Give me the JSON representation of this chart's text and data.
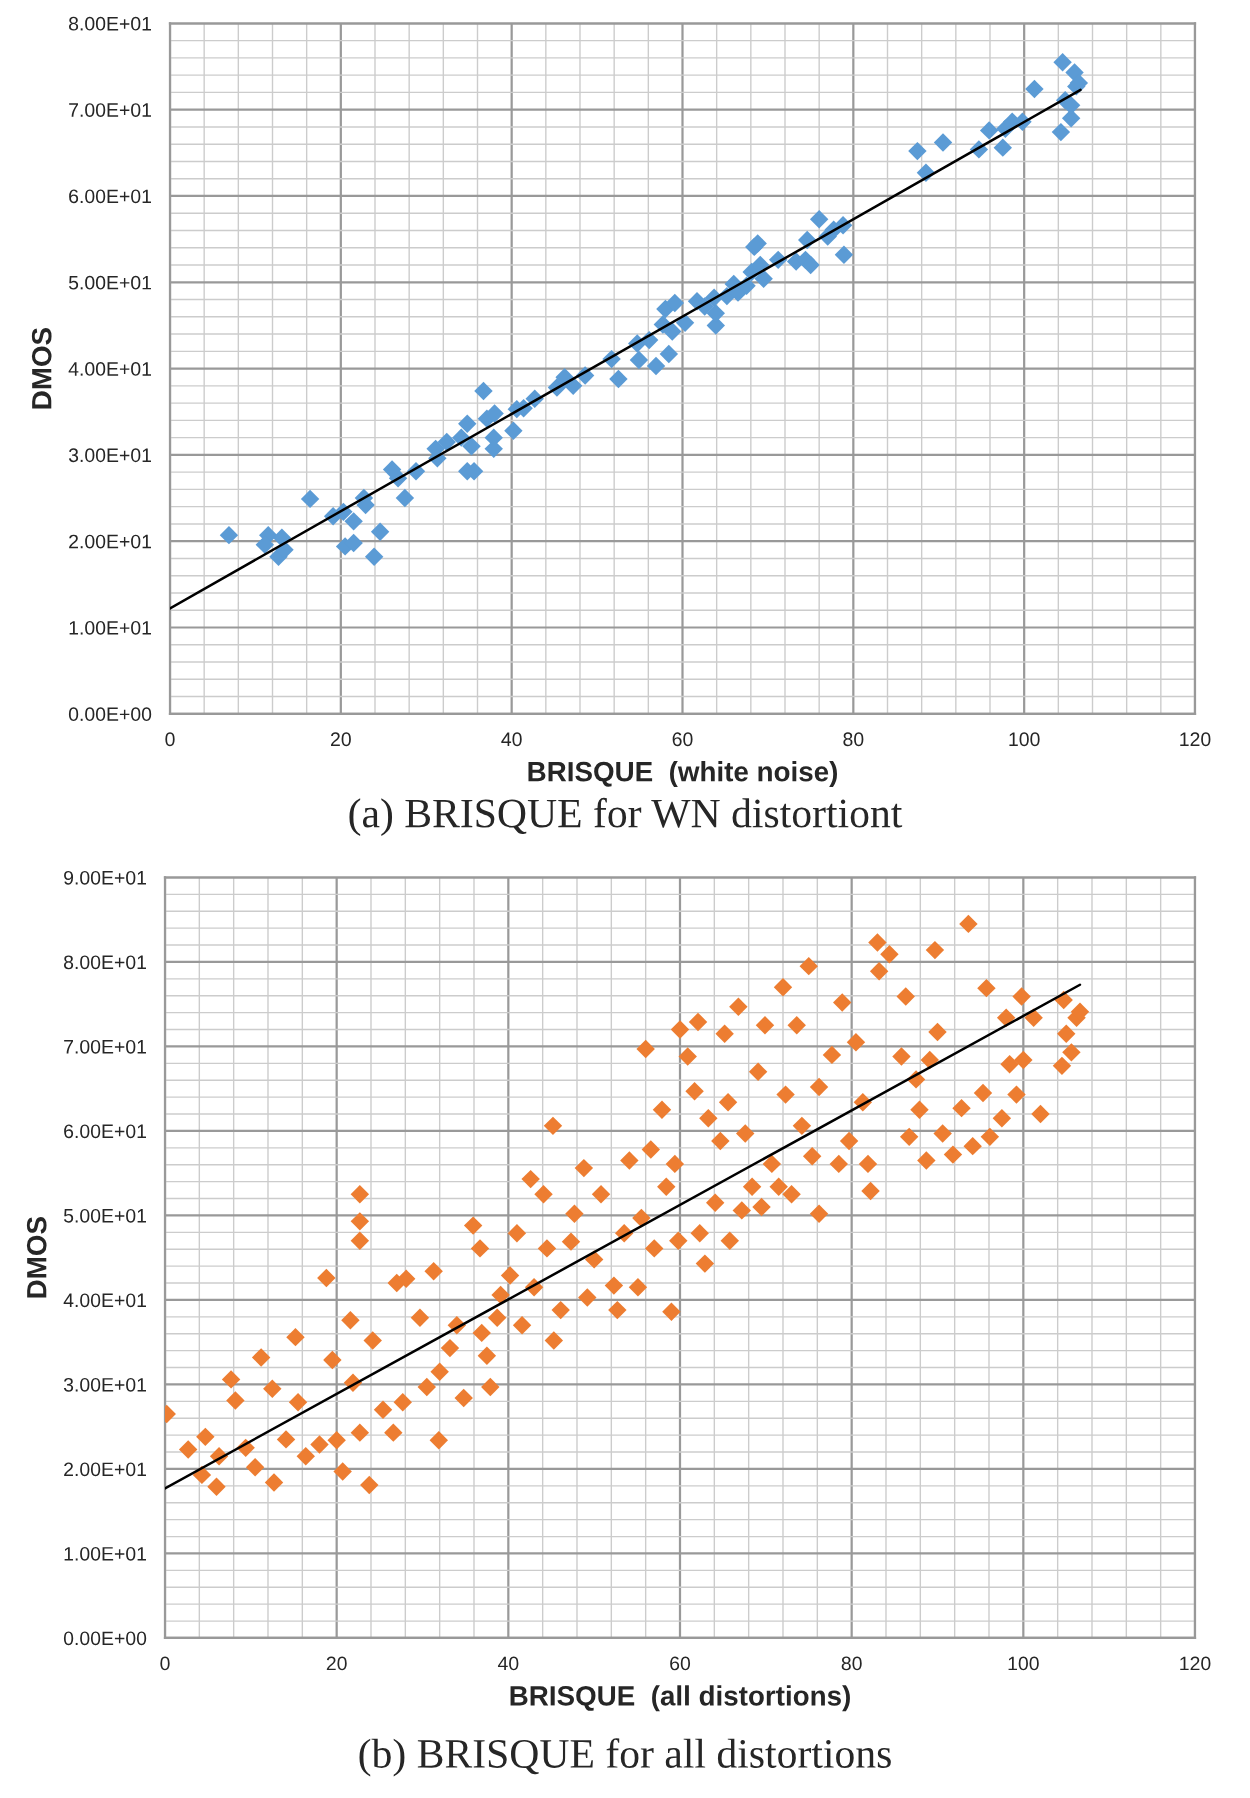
{
  "chart_data": [
    {
      "type": "scatter",
      "title": "(a) BRISQUE for WN distortiont",
      "xlabel": "BRISQUE  (white noise)",
      "ylabel": "DMOS",
      "xlim": [
        0,
        120
      ],
      "xticks": [
        0,
        20,
        40,
        60,
        80,
        100,
        120
      ],
      "ylim": [
        0,
        80
      ],
      "yticks": [
        {
          "value": 0,
          "label": "0.00E+00"
        },
        {
          "value": 10,
          "label": "1.00E+01"
        },
        {
          "value": 20,
          "label": "2.00E+01"
        },
        {
          "value": 30,
          "label": "3.00E+01"
        },
        {
          "value": 40,
          "label": "4.00E+01"
        },
        {
          "value": 50,
          "label": "5.00E+01"
        },
        {
          "value": 60,
          "label": "6.00E+01"
        },
        {
          "value": 70,
          "label": "7.00E+01"
        },
        {
          "value": 80,
          "label": "8.00E+01"
        }
      ],
      "grid": true,
      "marker": "diamond",
      "series": [
        {
          "color": "#5b9bd5",
          "x": [
            6.9,
            11.5,
            11.1,
            13.1,
            12.7,
            13.4,
            16.4,
            19.1,
            20.3,
            21.5,
            20.5,
            21.5,
            22.7,
            22.9,
            23.9,
            24.6,
            26.0,
            26.7,
            27.5,
            28.8,
            31.1,
            31.3,
            32.4,
            34.1,
            34.8,
            35.3,
            34.8,
            35.6,
            36.7,
            37.1,
            38.0,
            37.9,
            37.9,
            40.2,
            40.6,
            41.4,
            42.7,
            45.3,
            46.2,
            47.2,
            48.6,
            51.7,
            52.5,
            54.7,
            54.9,
            56.1,
            56.9,
            57.7,
            58.0,
            58.4,
            58.8,
            59.1,
            60.3,
            61.7,
            62.6,
            63.7,
            63.9,
            63.9,
            65.2,
            66.0,
            66.5,
            67.5,
            68.4,
            68.8,
            68.1,
            69.1,
            69.5,
            71.2,
            73.3,
            74.4,
            75.0,
            74.6,
            76.0,
            77.0,
            77.7,
            78.8,
            78.9,
            87.5,
            88.5,
            90.5,
            94.7,
            95.9,
            97.5,
            97.8,
            98.6,
            99.8,
            101.2,
            104.5,
            104.3,
            104.8,
            105.5,
            105.9,
            106.1,
            106.4,
            105.5
          ],
          "values": [
            20.7,
            20.7,
            19.6,
            20.4,
            18.2,
            19.0,
            24.9,
            22.9,
            23.4,
            22.3,
            19.4,
            19.8,
            25.0,
            24.2,
            18.2,
            21.1,
            28.3,
            27.3,
            25.0,
            28.1,
            30.7,
            29.6,
            31.5,
            32.0,
            33.6,
            31.0,
            28.1,
            28.1,
            37.4,
            34.2,
            34.8,
            32.0,
            30.7,
            32.8,
            35.3,
            35.4,
            36.5,
            37.8,
            39.0,
            38.0,
            39.2,
            41.1,
            38.8,
            42.9,
            41.0,
            43.3,
            40.3,
            45.1,
            46.9,
            41.7,
            44.3,
            47.6,
            45.3,
            47.8,
            47.2,
            48.2,
            45.0,
            46.4,
            48.4,
            49.8,
            48.8,
            49.6,
            54.1,
            54.5,
            51.2,
            52.0,
            50.4,
            52.6,
            52.4,
            52.6,
            52.0,
            54.9,
            57.3,
            55.3,
            56.1,
            56.6,
            53.2,
            65.2,
            62.7,
            66.2,
            65.4,
            67.6,
            65.6,
            67.8,
            68.6,
            68.6,
            72.4,
            75.5,
            67.4,
            71.1,
            69.0,
            74.3,
            72.7,
            73.1,
            70.5
          ]
        },
        {
          "type": "line",
          "color": "#000000",
          "marker": "none",
          "x": [
            0,
            106.6
          ],
          "values": [
            12.2,
            72.3
          ]
        }
      ]
    },
    {
      "type": "scatter",
      "title": "(b) BRISQUE for all distortions",
      "xlabel": "BRISQUE  (all distortions)",
      "ylabel": "DMOS",
      "xlim": [
        0,
        120
      ],
      "xticks": [
        0,
        20,
        40,
        60,
        80,
        100,
        120
      ],
      "ylim": [
        0,
        90
      ],
      "yticks": [
        {
          "value": 0,
          "label": "0.00E+00"
        },
        {
          "value": 10,
          "label": "1.00E+01"
        },
        {
          "value": 20,
          "label": "2.00E+01"
        },
        {
          "value": 30,
          "label": "3.00E+01"
        },
        {
          "value": 40,
          "label": "4.00E+01"
        },
        {
          "value": 50,
          "label": "5.00E+01"
        },
        {
          "value": 60,
          "label": "6.00E+01"
        },
        {
          "value": 70,
          "label": "7.00E+01"
        },
        {
          "value": 80,
          "label": "8.00E+01"
        },
        {
          "value": 90,
          "label": "9.00E+01"
        }
      ],
      "grid": true,
      "marker": "diamond",
      "series": [
        {
          "color": "#ed7d31",
          "x": [
            0.2,
            2.7,
            4.3,
            6.0,
            4.7,
            7.7,
            8.2,
            6.3,
            9.4,
            11.2,
            12.5,
            10.5,
            12.7,
            14.1,
            15.2,
            15.5,
            16.4,
            18.0,
            18.8,
            19.5,
            20.0,
            20.7,
            21.9,
            21.6,
            22.7,
            22.7,
            22.7,
            22.7,
            23.8,
            24.2,
            25.4,
            26.6,
            27.0,
            27.7,
            28.1,
            29.7,
            30.5,
            31.3,
            31.9,
            32.0,
            33.2,
            34.0,
            34.8,
            35.9,
            36.7,
            36.9,
            37.5,
            37.9,
            38.7,
            39.1,
            40.2,
            41.0,
            41.6,
            42.6,
            43.0,
            44.1,
            44.5,
            45.2,
            45.3,
            46.1,
            47.3,
            47.7,
            48.8,
            49.2,
            50.0,
            50.8,
            52.3,
            52.7,
            53.5,
            54.1,
            55.1,
            55.5,
            56.0,
            56.6,
            57.0,
            57.9,
            58.4,
            59.0,
            59.4,
            59.8,
            60.0,
            60.9,
            61.7,
            62.1,
            62.3,
            62.9,
            63.3,
            64.1,
            64.7,
            65.2,
            65.6,
            65.8,
            66.8,
            67.2,
            67.6,
            68.4,
            69.1,
            69.5,
            69.9,
            70.7,
            71.5,
            72.0,
            72.3,
            73.0,
            73.6,
            74.2,
            75.0,
            75.4,
            76.2,
            76.2,
            77.7,
            78.5,
            78.9,
            79.7,
            80.5,
            81.3,
            81.9,
            82.2,
            83.0,
            83.2,
            84.4,
            85.8,
            86.3,
            86.7,
            87.5,
            87.9,
            88.7,
            89.1,
            89.7,
            90.0,
            90.6,
            91.8,
            92.8,
            93.6,
            94.1,
            95.3,
            95.7,
            96.1,
            97.5,
            98.0,
            98.4,
            99.2,
            99.8,
            100.0,
            101.2,
            102.0,
            104.5,
            104.7,
            105.0,
            105.6,
            106.2,
            106.6
          ],
          "values": [
            26.5,
            22.3,
            19.3,
            17.9,
            23.8,
            30.6,
            28.1,
            21.5,
            22.5,
            33.2,
            29.5,
            20.2,
            18.4,
            23.5,
            35.6,
            27.9,
            21.5,
            22.9,
            42.6,
            32.9,
            23.4,
            19.7,
            30.2,
            37.6,
            52.5,
            49.3,
            47.0,
            24.3,
            18.1,
            35.2,
            27.0,
            24.3,
            42.0,
            27.9,
            42.5,
            37.9,
            29.7,
            43.4,
            23.4,
            31.5,
            34.3,
            37.0,
            28.4,
            48.8,
            46.1,
            36.1,
            33.4,
            29.7,
            37.9,
            40.6,
            42.9,
            47.9,
            37.0,
            54.3,
            41.5,
            52.5,
            46.1,
            60.6,
            35.2,
            38.8,
            46.9,
            50.2,
            55.6,
            40.3,
            44.8,
            52.5,
            41.7,
            38.8,
            47.9,
            56.5,
            41.5,
            49.7,
            69.7,
            57.8,
            46.1,
            62.5,
            53.4,
            38.6,
            56.1,
            47.0,
            72.0,
            68.8,
            64.7,
            72.9,
            47.9,
            44.3,
            61.5,
            51.5,
            58.8,
            71.5,
            63.4,
            47.0,
            74.7,
            50.6,
            59.7,
            53.4,
            67.0,
            51.0,
            72.5,
            56.1,
            53.4,
            77.0,
            64.3,
            52.5,
            72.5,
            60.6,
            79.5,
            57.0,
            65.2,
            50.2,
            69.0,
            56.1,
            75.2,
            58.8,
            70.5,
            63.4,
            56.1,
            52.9,
            82.3,
            78.9,
            80.9,
            68.8,
            75.9,
            59.3,
            66.1,
            62.5,
            56.5,
            68.4,
            81.4,
            71.7,
            59.7,
            57.2,
            62.7,
            84.5,
            58.2,
            64.5,
            76.9,
            59.3,
            61.5,
            73.4,
            67.9,
            64.3,
            75.9,
            68.4,
            73.4,
            62.0,
            67.7,
            75.5,
            71.5,
            69.3,
            73.4,
            74.1
          ]
        },
        {
          "type": "line",
          "color": "#000000",
          "marker": "none",
          "x": [
            0,
            106.6
          ],
          "values": [
            17.7,
            77.3
          ]
        }
      ]
    }
  ]
}
